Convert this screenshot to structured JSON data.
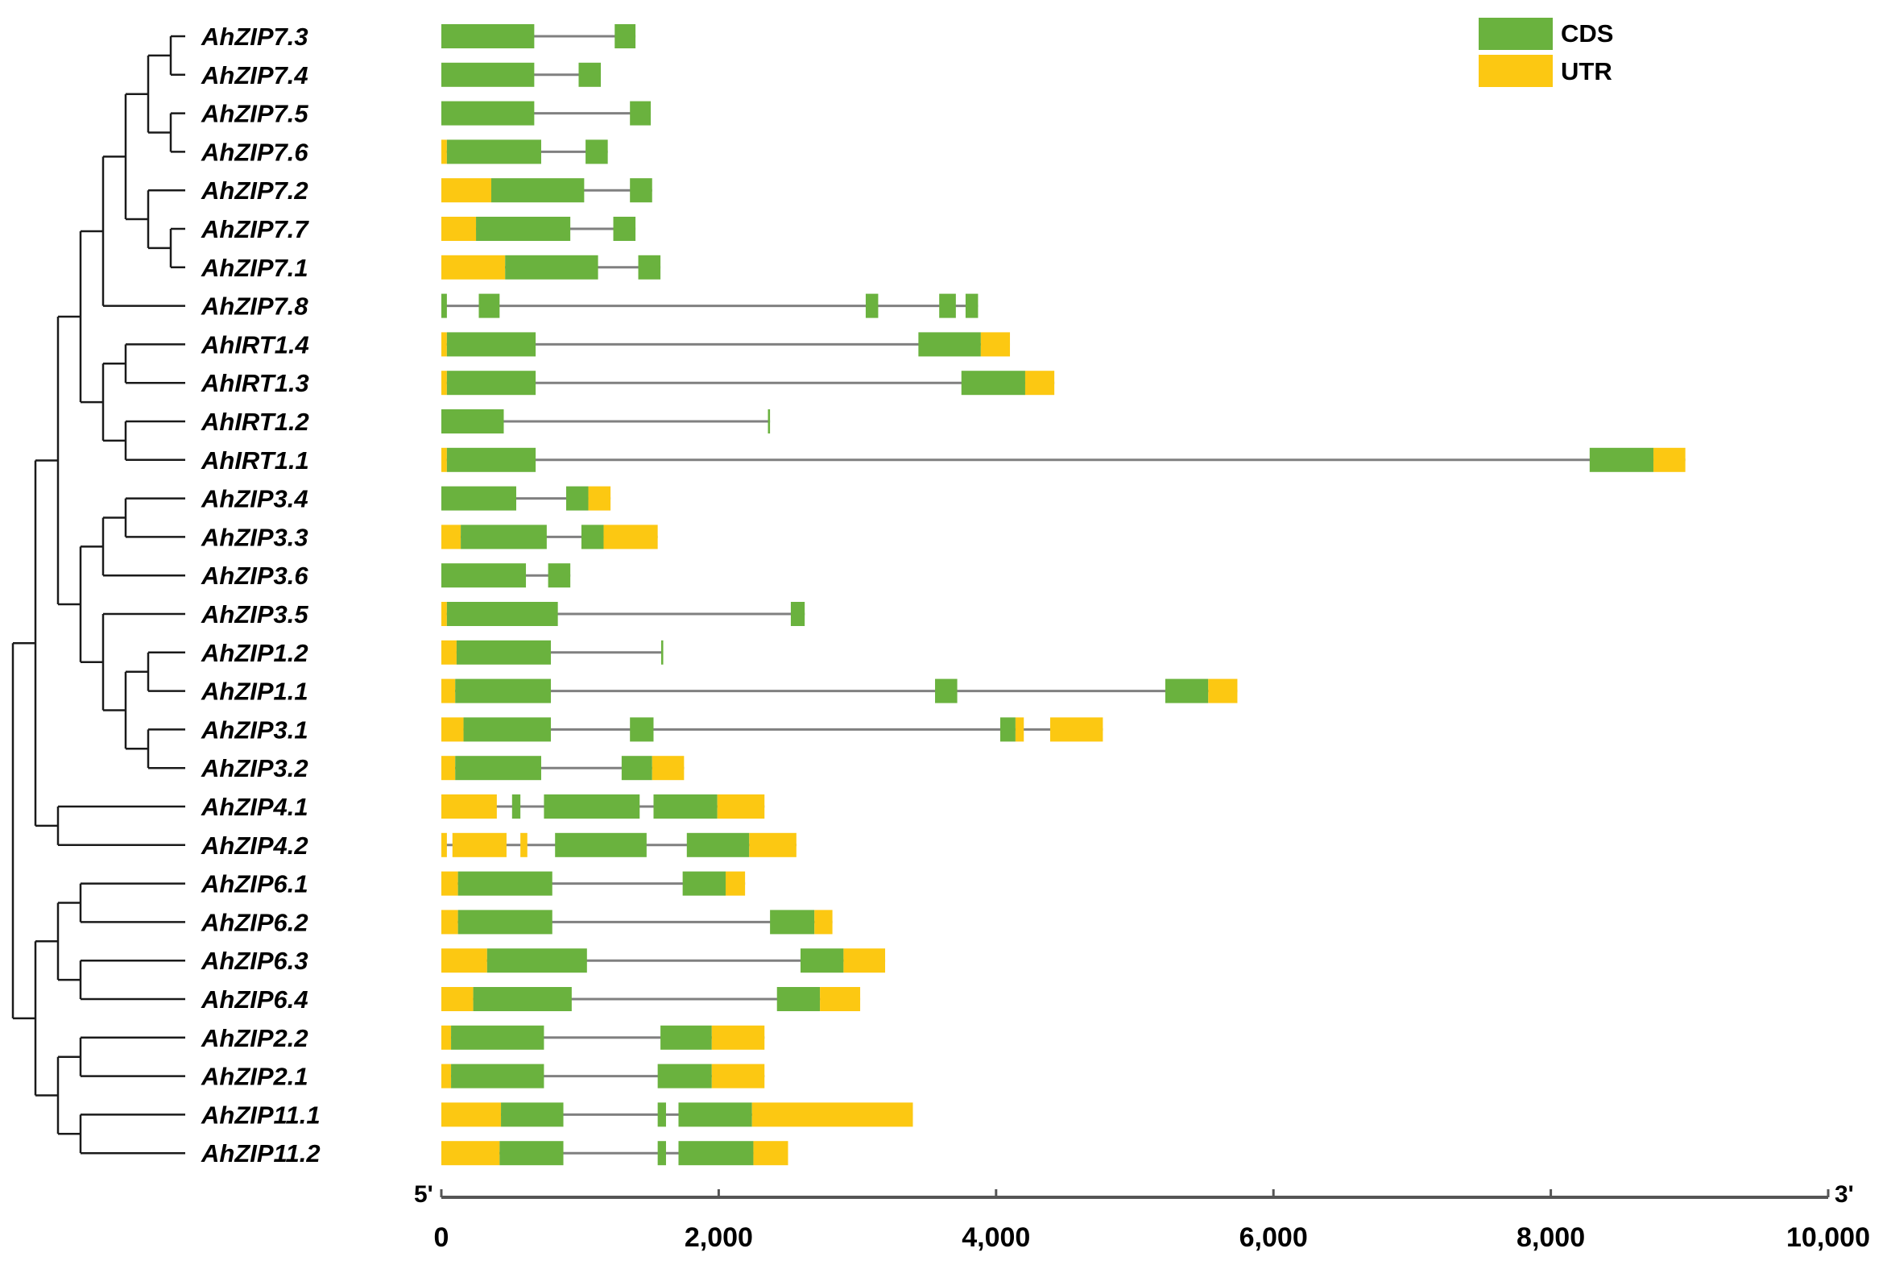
{
  "figure": {
    "legend": {
      "cds_label": "CDS",
      "utr_label": "UTR"
    },
    "axis": {
      "five_prime": "5'",
      "three_prime": "3'",
      "min": 0,
      "max": 10000,
      "ticks": [
        {
          "value": 0,
          "label": "0"
        },
        {
          "value": 2000,
          "label": "2,000"
        },
        {
          "value": 4000,
          "label": "4,000"
        },
        {
          "value": 6000,
          "label": "6,000"
        },
        {
          "value": 8000,
          "label": "8,000"
        },
        {
          "value": 10000,
          "label": "10,000"
        }
      ]
    },
    "colors": {
      "cds": "#6ab23e",
      "utr": "#fcc812",
      "intron": "#808080",
      "tree": "#1a1a1a"
    }
  },
  "genes": [
    {
      "name": "AhZIP7.3",
      "end": 1400,
      "features": [
        [
          "C",
          0,
          670
        ],
        [
          "C",
          1250,
          1400
        ]
      ]
    },
    {
      "name": "AhZIP7.4",
      "end": 1150,
      "features": [
        [
          "C",
          0,
          670
        ],
        [
          "C",
          990,
          1150
        ]
      ]
    },
    {
      "name": "AhZIP7.5",
      "end": 1510,
      "features": [
        [
          "C",
          0,
          670
        ],
        [
          "C",
          1360,
          1510
        ]
      ]
    },
    {
      "name": "AhZIP7.6",
      "end": 1200,
      "features": [
        [
          "U",
          0,
          40
        ],
        [
          "C",
          40,
          720
        ],
        [
          "C",
          1040,
          1200
        ]
      ]
    },
    {
      "name": "AhZIP7.2",
      "end": 1520,
      "features": [
        [
          "U",
          0,
          360
        ],
        [
          "C",
          360,
          1030
        ],
        [
          "C",
          1360,
          1520
        ]
      ]
    },
    {
      "name": "AhZIP7.7",
      "end": 1400,
      "features": [
        [
          "U",
          0,
          250
        ],
        [
          "C",
          250,
          930
        ],
        [
          "C",
          1240,
          1400
        ]
      ]
    },
    {
      "name": "AhZIP7.1",
      "end": 1580,
      "features": [
        [
          "U",
          0,
          460
        ],
        [
          "C",
          460,
          1130
        ],
        [
          "C",
          1420,
          1580
        ]
      ]
    },
    {
      "name": "AhZIP7.8",
      "end": 3870,
      "features": [
        [
          "C",
          0,
          40
        ],
        [
          "C",
          270,
          420
        ],
        [
          "C",
          3060,
          3150
        ],
        [
          "C",
          3590,
          3710
        ],
        [
          "C",
          3780,
          3870
        ]
      ]
    },
    {
      "name": "AhIRT1.4",
      "end": 4100,
      "features": [
        [
          "U",
          0,
          40
        ],
        [
          "C",
          40,
          680
        ],
        [
          "C",
          3440,
          3890
        ],
        [
          "U",
          3890,
          4100
        ]
      ]
    },
    {
      "name": "AhIRT1.3",
      "end": 4420,
      "features": [
        [
          "U",
          0,
          40
        ],
        [
          "C",
          40,
          680
        ],
        [
          "C",
          3750,
          4210
        ],
        [
          "U",
          4210,
          4420
        ]
      ]
    },
    {
      "name": "AhIRT1.2",
      "end": 2370,
      "features": [
        [
          "C",
          0,
          450
        ],
        [
          "C",
          2355,
          2370
        ]
      ]
    },
    {
      "name": "AhIRT1.1",
      "end": 8970,
      "features": [
        [
          "U",
          0,
          40
        ],
        [
          "C",
          40,
          680
        ],
        [
          "C",
          8280,
          8740
        ],
        [
          "U",
          8740,
          8970
        ]
      ]
    },
    {
      "name": "AhZIP3.4",
      "end": 1220,
      "features": [
        [
          "C",
          0,
          540
        ],
        [
          "C",
          900,
          1060
        ],
        [
          "U",
          1060,
          1220
        ]
      ]
    },
    {
      "name": "AhZIP3.3",
      "end": 1560,
      "features": [
        [
          "U",
          0,
          140
        ],
        [
          "C",
          140,
          760
        ],
        [
          "C",
          1010,
          1170
        ],
        [
          "U",
          1170,
          1560
        ]
      ]
    },
    {
      "name": "AhZIP3.6",
      "end": 930,
      "features": [
        [
          "C",
          0,
          610
        ],
        [
          "C",
          770,
          930
        ]
      ]
    },
    {
      "name": "AhZIP3.5",
      "end": 2620,
      "features": [
        [
          "U",
          0,
          40
        ],
        [
          "C",
          40,
          840
        ],
        [
          "C",
          2520,
          2620
        ]
      ]
    },
    {
      "name": "AhZIP1.2",
      "end": 1600,
      "features": [
        [
          "U",
          0,
          110
        ],
        [
          "C",
          110,
          790
        ],
        [
          "C",
          1585,
          1600
        ]
      ]
    },
    {
      "name": "AhZIP1.1",
      "end": 5740,
      "features": [
        [
          "U",
          0,
          100
        ],
        [
          "C",
          100,
          790
        ],
        [
          "C",
          3560,
          3720
        ],
        [
          "C",
          5220,
          5530
        ],
        [
          "U",
          5530,
          5740
        ]
      ]
    },
    {
      "name": "AhZIP3.1",
      "end": 4770,
      "features": [
        [
          "U",
          0,
          160
        ],
        [
          "C",
          160,
          790
        ],
        [
          "C",
          1360,
          1530
        ],
        [
          "C",
          4030,
          4140
        ],
        [
          "U",
          4140,
          4200
        ],
        [
          "U",
          4390,
          4770
        ]
      ]
    },
    {
      "name": "AhZIP3.2",
      "end": 1750,
      "features": [
        [
          "U",
          0,
          100
        ],
        [
          "C",
          100,
          720
        ],
        [
          "C",
          1300,
          1520
        ],
        [
          "U",
          1520,
          1750
        ]
      ]
    },
    {
      "name": "AhZIP4.1",
      "end": 2330,
      "features": [
        [
          "U",
          0,
          400
        ],
        [
          "C",
          510,
          570
        ],
        [
          "C",
          740,
          1430
        ],
        [
          "C",
          1530,
          1990
        ],
        [
          "U",
          1990,
          2330
        ]
      ]
    },
    {
      "name": "AhZIP4.2",
      "end": 2560,
      "features": [
        [
          "U",
          0,
          40
        ],
        [
          "U",
          80,
          470
        ],
        [
          "U",
          570,
          620
        ],
        [
          "C",
          820,
          1480
        ],
        [
          "C",
          1770,
          2220
        ],
        [
          "U",
          2220,
          2560
        ]
      ]
    },
    {
      "name": "AhZIP6.1",
      "end": 2190,
      "features": [
        [
          "U",
          0,
          120
        ],
        [
          "C",
          120,
          800
        ],
        [
          "C",
          1740,
          2050
        ],
        [
          "U",
          2050,
          2190
        ]
      ]
    },
    {
      "name": "AhZIP6.2",
      "end": 2820,
      "features": [
        [
          "U",
          0,
          120
        ],
        [
          "C",
          120,
          800
        ],
        [
          "C",
          2370,
          2690
        ],
        [
          "U",
          2690,
          2820
        ]
      ]
    },
    {
      "name": "AhZIP6.3",
      "end": 3200,
      "features": [
        [
          "U",
          0,
          330
        ],
        [
          "C",
          330,
          1050
        ],
        [
          "C",
          2590,
          2900
        ],
        [
          "U",
          2900,
          3200
        ]
      ]
    },
    {
      "name": "AhZIP6.4",
      "end": 3020,
      "features": [
        [
          "U",
          0,
          230
        ],
        [
          "C",
          230,
          940
        ],
        [
          "C",
          2420,
          2730
        ],
        [
          "U",
          2730,
          3020
        ]
      ]
    },
    {
      "name": "AhZIP2.2",
      "end": 2330,
      "features": [
        [
          "U",
          0,
          70
        ],
        [
          "C",
          70,
          740
        ],
        [
          "C",
          1580,
          1950
        ],
        [
          "U",
          1950,
          2330
        ]
      ]
    },
    {
      "name": "AhZIP2.1",
      "end": 2330,
      "features": [
        [
          "U",
          0,
          70
        ],
        [
          "C",
          70,
          740
        ],
        [
          "C",
          1560,
          1950
        ],
        [
          "U",
          1950,
          2330
        ]
      ]
    },
    {
      "name": "AhZIP11.1",
      "end": 3400,
      "features": [
        [
          "U",
          0,
          430
        ],
        [
          "C",
          430,
          880
        ],
        [
          "C",
          1560,
          1620
        ],
        [
          "C",
          1710,
          2240
        ],
        [
          "U",
          2240,
          3400
        ]
      ]
    },
    {
      "name": "AhZIP11.2",
      "end": 2500,
      "features": [
        [
          "U",
          0,
          420
        ],
        [
          "C",
          420,
          880
        ],
        [
          "C",
          1560,
          1620
        ],
        [
          "C",
          1710,
          2250
        ],
        [
          "U",
          2250,
          2500
        ]
      ]
    }
  ],
  "tree": {
    "name": "root",
    "children": [
      {
        "name": "c1",
        "children": [
          {
            "name": "c2",
            "children": [
              {
                "name": "c3",
                "children": [
                  {
                    "name": "c4",
                    "children": [
                      {
                        "name": "c5",
                        "children": [
                          {
                            "name": "c6",
                            "children": [
                              {
                                "name": "c7",
                                "children": [
                                  {
                                    "leaf": 0
                                  },
                                  {
                                    "leaf": 1
                                  }
                                ]
                              },
                              {
                                "name": "c8",
                                "children": [
                                  {
                                    "leaf": 2
                                  },
                                  {
                                    "leaf": 3
                                  }
                                ]
                              }
                            ]
                          },
                          {
                            "name": "c9",
                            "children": [
                              {
                                "leaf": 4
                              },
                              {
                                "name": "c10",
                                "children": [
                                  {
                                    "leaf": 5
                                  },
                                  {
                                    "leaf": 6
                                  }
                                ]
                              }
                            ]
                          }
                        ]
                      },
                      {
                        "leaf": 7
                      }
                    ]
                  },
                  {
                    "name": "c11",
                    "children": [
                      {
                        "name": "c12",
                        "children": [
                          {
                            "leaf": 8
                          },
                          {
                            "leaf": 9
                          }
                        ]
                      },
                      {
                        "name": "c13",
                        "children": [
                          {
                            "leaf": 10
                          },
                          {
                            "leaf": 11
                          }
                        ]
                      }
                    ]
                  }
                ]
              },
              {
                "name": "c14",
                "children": [
                  {
                    "name": "c15",
                    "children": [
                      {
                        "name": "c16",
                        "children": [
                          {
                            "leaf": 12
                          },
                          {
                            "leaf": 13
                          }
                        ]
                      },
                      {
                        "leaf": 14
                      }
                    ]
                  },
                  {
                    "name": "c17",
                    "children": [
                      {
                        "leaf": 15
                      },
                      {
                        "name": "c18",
                        "children": [
                          {
                            "name": "c19",
                            "children": [
                              {
                                "leaf": 16
                              },
                              {
                                "leaf": 17
                              }
                            ]
                          },
                          {
                            "name": "c20",
                            "children": [
                              {
                                "leaf": 18
                              },
                              {
                                "leaf": 19
                              }
                            ]
                          }
                        ]
                      }
                    ]
                  }
                ]
              }
            ]
          },
          {
            "name": "c21",
            "children": [
              {
                "leaf": 20
              },
              {
                "leaf": 21
              }
            ]
          }
        ]
      },
      {
        "name": "c22",
        "children": [
          {
            "name": "c23",
            "children": [
              {
                "name": "c24",
                "children": [
                  {
                    "leaf": 22
                  },
                  {
                    "leaf": 23
                  }
                ]
              },
              {
                "name": "c25",
                "children": [
                  {
                    "leaf": 24
                  },
                  {
                    "leaf": 25
                  }
                ]
              }
            ]
          },
          {
            "name": "c26",
            "children": [
              {
                "name": "c27",
                "children": [
                  {
                    "leaf": 26
                  },
                  {
                    "leaf": 27
                  }
                ]
              },
              {
                "name": "c28",
                "children": [
                  {
                    "leaf": 28
                  },
                  {
                    "leaf": 29
                  }
                ]
              }
            ]
          }
        ]
      }
    ]
  }
}
